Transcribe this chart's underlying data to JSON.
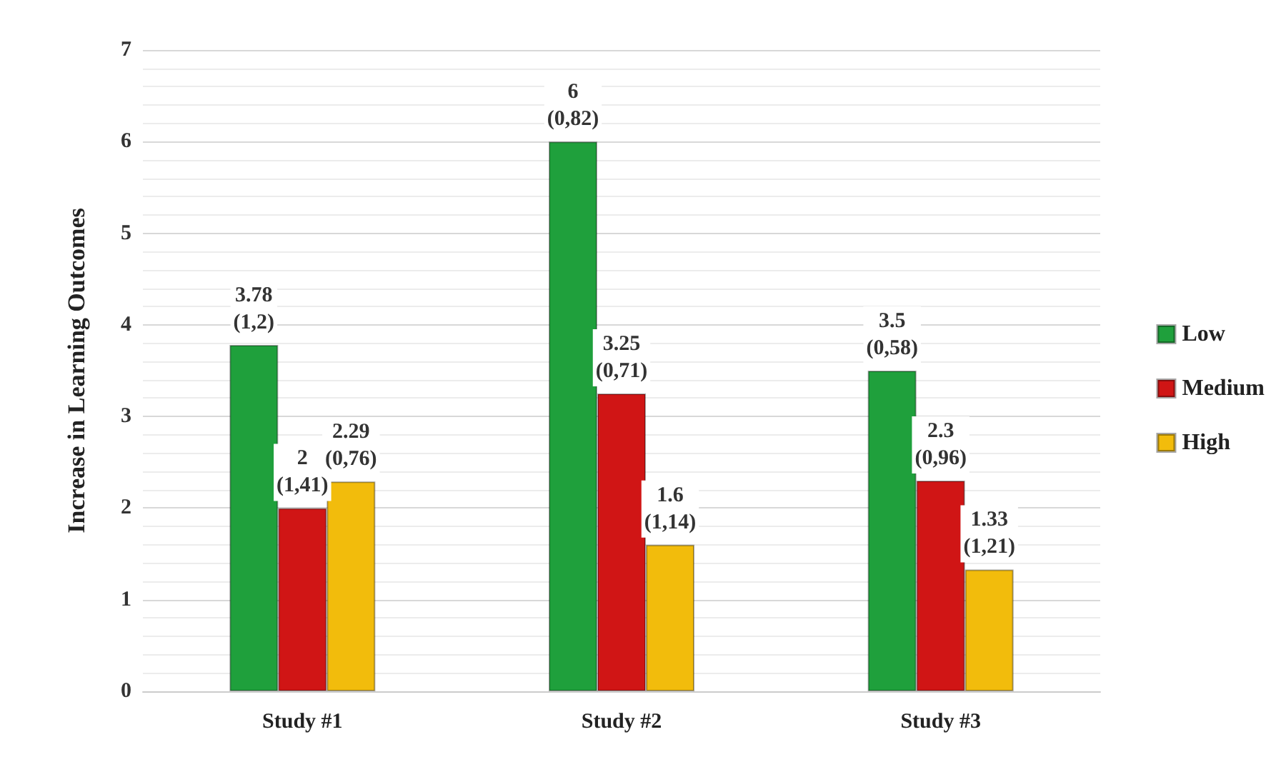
{
  "chart_data": {
    "type": "bar",
    "ylabel": "Increase in Learning Outcomes",
    "categories": [
      "Study #1",
      "Study #2",
      "Study #3"
    ],
    "series": [
      {
        "name": "Low",
        "color": "#1fa03c",
        "values": [
          3.78,
          6,
          3.5
        ],
        "value_labels": [
          "3.78\n(1,2)",
          "6\n(0,82)",
          "3.5\n(0,58)"
        ]
      },
      {
        "name": "Medium",
        "color": "#d01515",
        "values": [
          2,
          3.25,
          2.3
        ],
        "value_labels": [
          "2\n(1,41)",
          "3.25\n(0,71)",
          "2.3\n(0,96)"
        ]
      },
      {
        "name": "High",
        "color": "#f2bc0c",
        "values": [
          2.29,
          1.6,
          1.33
        ],
        "value_labels": [
          "2.29\n(0,76)",
          "1.6\n(1,14)",
          "1.33\n(1,21)"
        ]
      }
    ],
    "ylim": [
      0,
      7
    ],
    "yticks": [
      0,
      1,
      2,
      3,
      4,
      5,
      6,
      7
    ],
    "grid": "y",
    "legend": "right"
  }
}
